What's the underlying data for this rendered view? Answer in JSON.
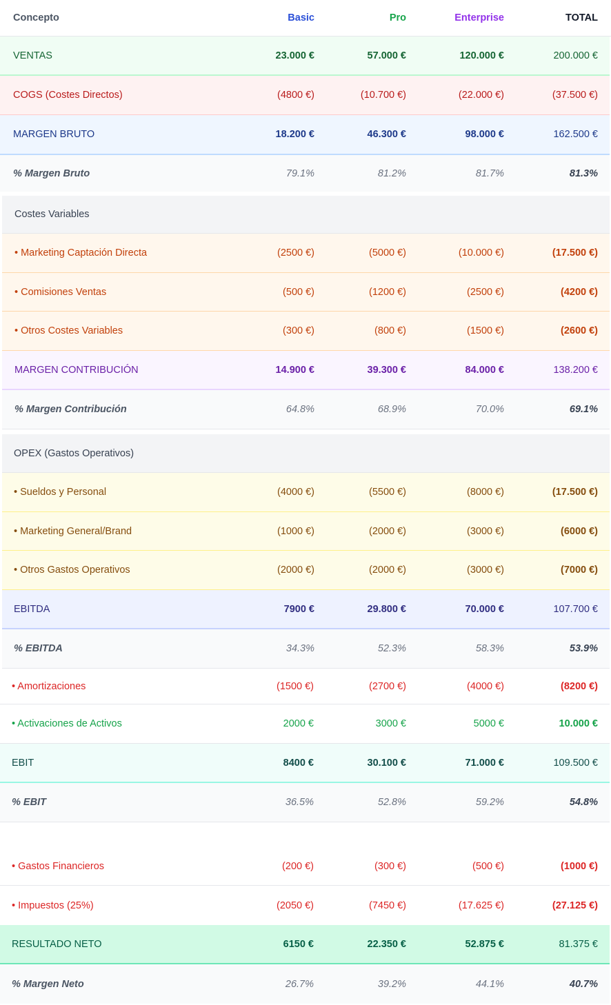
{
  "header": {
    "concepto": "Concepto",
    "basic": "Basic",
    "pro": "Pro",
    "enterprise": "Enterprise",
    "total": "TOTAL"
  },
  "rows": [
    {
      "label": "VENTAS",
      "basic": "23.000 €",
      "pro": "57.000 €",
      "enterprise": "120.000 €",
      "total": "200.000 €"
    },
    {
      "label": "COGS (Costes Directos)",
      "basic": "(4800 €)",
      "pro": "(10.700 €)",
      "enterprise": "(22.000 €)",
      "total": "(37.500 €)"
    },
    {
      "label": "MARGEN BRUTO",
      "basic": "18.200 €",
      "pro": "46.300 €",
      "enterprise": "98.000 €",
      "total": "162.500 €"
    },
    {
      "label": "% Margen Bruto",
      "basic": "79.1%",
      "pro": "81.2%",
      "enterprise": "81.7%",
      "total": "81.3%"
    },
    {
      "label": "Costes Variables"
    },
    {
      "label": "• Marketing Captación Directa",
      "basic": "(2500 €)",
      "pro": "(5000 €)",
      "enterprise": "(10.000 €)",
      "total": "(17.500 €)"
    },
    {
      "label": "• Comisiones Ventas",
      "basic": "(500 €)",
      "pro": "(1200 €)",
      "enterprise": "(2500 €)",
      "total": "(4200 €)"
    },
    {
      "label": "• Otros Costes Variables",
      "basic": "(300 €)",
      "pro": "(800 €)",
      "enterprise": "(1500 €)",
      "total": "(2600 €)"
    },
    {
      "label": "MARGEN CONTRIBUCIÓN",
      "basic": "14.900 €",
      "pro": "39.300 €",
      "enterprise": "84.000 €",
      "total": "138.200 €"
    },
    {
      "label": "% Margen Contribución",
      "basic": "64.8%",
      "pro": "68.9%",
      "enterprise": "70.0%",
      "total": "69.1%"
    },
    {
      "label": "OPEX (Gastos Operativos)"
    },
    {
      "label": "• Sueldos y Personal",
      "basic": "(4000 €)",
      "pro": "(5500 €)",
      "enterprise": "(8000 €)",
      "total": "(17.500 €)"
    },
    {
      "label": "• Marketing General/Brand",
      "basic": "(1000 €)",
      "pro": "(2000 €)",
      "enterprise": "(3000 €)",
      "total": "(6000 €)"
    },
    {
      "label": "• Otros Gastos Operativos",
      "basic": "(2000 €)",
      "pro": "(2000 €)",
      "enterprise": "(3000 €)",
      "total": "(7000 €)"
    },
    {
      "label": "EBITDA",
      "basic": "7900 €",
      "pro": "29.800 €",
      "enterprise": "70.000 €",
      "total": "107.700 €"
    },
    {
      "label": "% EBITDA",
      "basic": "34.3%",
      "pro": "52.3%",
      "enterprise": "58.3%",
      "total": "53.9%"
    },
    {
      "label": "• Amortizaciones",
      "basic": "(1500 €)",
      "pro": "(2700 €)",
      "enterprise": "(4000 €)",
      "total": "(8200 €)"
    },
    {
      "label": "• Activaciones de Activos",
      "basic": "2000 €",
      "pro": "3000 €",
      "enterprise": "5000 €",
      "total": "10.000 €"
    },
    {
      "label": "EBIT",
      "basic": "8400 €",
      "pro": "30.100 €",
      "enterprise": "71.000 €",
      "total": "109.500 €"
    },
    {
      "label": "% EBIT",
      "basic": "36.5%",
      "pro": "52.8%",
      "enterprise": "59.2%",
      "total": "54.8%"
    },
    {
      "label": "• Gastos Financieros",
      "basic": "(200 €)",
      "pro": "(300 €)",
      "enterprise": "(500 €)",
      "total": "(1000 €)"
    },
    {
      "label": "• Impuestos (25%)",
      "basic": "(2050 €)",
      "pro": "(7450 €)",
      "enterprise": "(17.625 €)",
      "total": "(27.125 €)"
    },
    {
      "label": "RESULTADO NETO",
      "basic": "6150 €",
      "pro": "22.350 €",
      "enterprise": "52.875 €",
      "total": "81.375 €"
    },
    {
      "label": "% Margen Neto",
      "basic": "26.7%",
      "pro": "39.2%",
      "enterprise": "44.1%",
      "total": "40.7%"
    }
  ],
  "colors": {
    "basic_header": "#2b50d8",
    "pro_header": "#16a34a",
    "enterprise_header": "#9333ea",
    "ventas": "#166534",
    "cogs": "#b91c1c",
    "margen_bruto": "#1e3a8a",
    "variable": "#c2410c",
    "contribucion": "#6b21a8",
    "opex": "#854d0e",
    "ebitda": "#312e81",
    "red": "#dc2626",
    "green": "#16a34a",
    "ebit": "#134e4a",
    "neto": "#065f46",
    "muted": "#6b7280"
  }
}
